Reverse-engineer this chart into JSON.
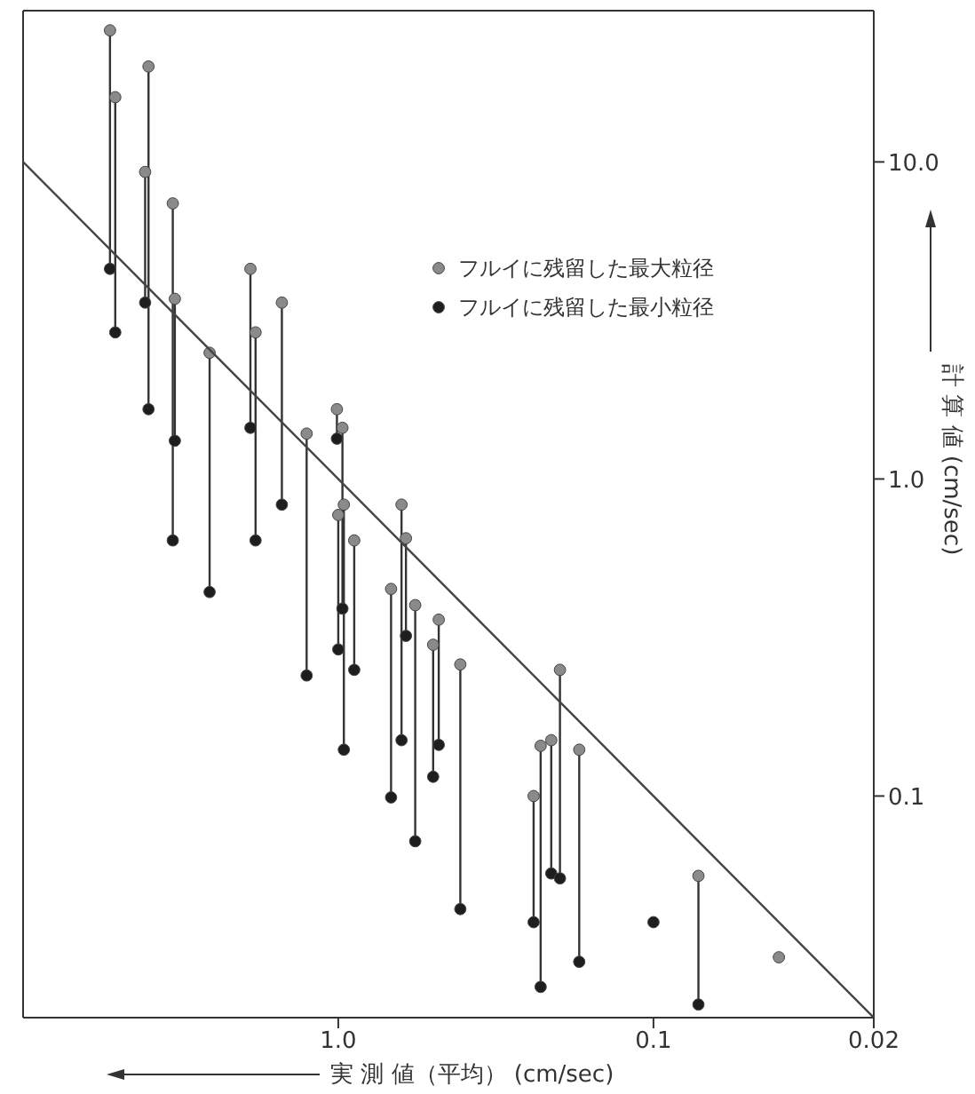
{
  "chart_data": {
    "type": "scatter",
    "xlabel": "実 測 値（平均） (cm/sec)",
    "ylabel": "計 算 値 (cm/sec)",
    "log": "xy",
    "xlim": [
      10,
      0.02
    ],
    "ylim": [
      0.02,
      30
    ],
    "xticks": [
      {
        "value": 1,
        "label": "1.0"
      },
      0.1,
      0.02
    ],
    "yticks": [
      {
        "value": 10,
        "label": "10.0"
      },
      {
        "value": 1,
        "label": "1.0"
      },
      0.1
    ],
    "legend": "top right",
    "marker": "circle",
    "series": [
      {
        "name": "フルイに残留した最大粒径",
        "color": "#8a8a8a",
        "x": [
          5.3,
          5.1,
          4.0,
          4.1,
          3.35,
          3.3,
          2.56,
          1.9,
          1.83,
          1.51,
          1.26,
          1.01,
          1.0,
          0.97,
          0.96,
          0.89,
          0.68,
          0.63,
          0.61,
          0.57,
          0.5,
          0.48,
          0.41,
          0.24,
          0.228,
          0.211,
          0.198,
          0.172,
          0.072,
          0.04
        ],
        "values": [
          26,
          16,
          20,
          9.3,
          7.4,
          3.7,
          2.5,
          4.6,
          2.9,
          3.6,
          1.39,
          1.66,
          0.77,
          1.45,
          0.83,
          0.64,
          0.45,
          0.83,
          0.65,
          0.4,
          0.3,
          0.36,
          0.26,
          0.1,
          0.144,
          0.15,
          0.25,
          0.14,
          0.056,
          0.031
        ],
        "errors": [
          [
            4.6,
            26
          ],
          [
            2.9,
            16
          ],
          [
            1.66,
            20
          ],
          [
            3.6,
            9.3
          ],
          [
            0.64,
            7.4
          ],
          [
            1.32,
            3.7
          ],
          [
            0.44,
            2.5
          ],
          [
            1.45,
            4.6
          ],
          [
            0.64,
            2.9
          ],
          [
            0.83,
            3.6
          ],
          [
            0.24,
            1.39
          ],
          [
            1.34,
            1.66
          ],
          [
            0.29,
            0.77
          ],
          [
            0.39,
            1.45
          ],
          [
            0.14,
            0.83
          ],
          [
            0.25,
            0.64
          ],
          [
            0.099,
            0.45
          ],
          [
            0.15,
            0.83
          ],
          [
            0.32,
            0.65
          ],
          [
            0.072,
            0.4
          ],
          [
            0.115,
            0.3
          ],
          [
            0.145,
            0.36
          ],
          [
            0.044,
            0.26
          ],
          [
            0.04,
            0.1
          ],
          [
            0.025,
            0.144
          ],
          [
            0.057,
            0.15
          ],
          [
            0.055,
            0.25
          ],
          [
            0.03,
            0.14
          ],
          [
            0.022,
            0.056
          ],
          null
        ]
      },
      {
        "name": "フルイに残留した最小粒径",
        "color": "#1e1e1e",
        "x": [
          5.3,
          5.1,
          4.0,
          4.1,
          3.35,
          3.3,
          2.56,
          1.9,
          1.83,
          1.51,
          1.26,
          1.01,
          1.0,
          0.97,
          0.96,
          0.89,
          0.68,
          0.63,
          0.61,
          0.57,
          0.5,
          0.48,
          0.41,
          0.24,
          0.228,
          0.211,
          0.198,
          0.172,
          0.1,
          0.072
        ],
        "values": [
          4.6,
          2.9,
          1.66,
          3.6,
          0.64,
          1.32,
          0.44,
          1.45,
          0.64,
          0.83,
          0.24,
          1.34,
          0.29,
          0.39,
          0.14,
          0.25,
          0.099,
          0.15,
          0.32,
          0.072,
          0.115,
          0.145,
          0.044,
          0.04,
          0.025,
          0.057,
          0.055,
          0.03,
          0.04,
          0.022
        ]
      },
      {
        "type": "line",
        "color": "#444444",
        "marker": "none",
        "x": [
          10,
          0.02
        ],
        "values": [
          10,
          0.02
        ]
      }
    ]
  }
}
